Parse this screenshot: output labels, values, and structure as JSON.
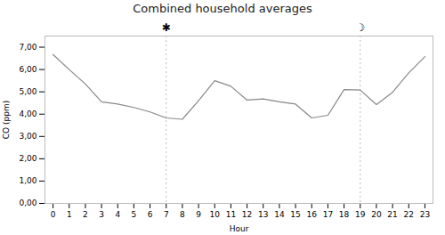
{
  "chart_data": {
    "type": "line",
    "title": "Combined household averages",
    "xlabel": "Hour",
    "ylabel": "CO (ppm)",
    "x": [
      0,
      1,
      2,
      3,
      4,
      5,
      6,
      7,
      8,
      9,
      10,
      11,
      12,
      13,
      14,
      15,
      16,
      17,
      18,
      19,
      20,
      21,
      22,
      23
    ],
    "values": [
      6.67,
      6.0,
      5.35,
      4.55,
      4.45,
      4.3,
      4.1,
      3.83,
      3.77,
      4.6,
      5.5,
      5.25,
      4.63,
      4.68,
      4.55,
      4.45,
      3.83,
      3.95,
      5.1,
      5.08,
      4.43,
      4.98,
      5.85,
      6.58
    ],
    "color": "#888888",
    "xlim": [
      -0.5,
      23.5
    ],
    "xticks": [
      0,
      1,
      2,
      3,
      4,
      5,
      6,
      7,
      8,
      9,
      10,
      11,
      12,
      13,
      14,
      15,
      16,
      17,
      18,
      19,
      20,
      21,
      22,
      23
    ],
    "ylim": [
      0.0,
      7.5
    ],
    "yticks": [
      {
        "value": 0.0,
        "label": "0,00"
      },
      {
        "value": 1.0,
        "label": "1,00"
      },
      {
        "value": 2.0,
        "label": "2,00"
      },
      {
        "value": 3.0,
        "label": "3,00"
      },
      {
        "value": 4.0,
        "label": "4,00"
      },
      {
        "value": 5.0,
        "label": "5,00"
      },
      {
        "value": 6.0,
        "label": "6,00"
      },
      {
        "value": 7.0,
        "label": "7,00"
      }
    ],
    "grid": false,
    "annotations": [
      {
        "x": 7,
        "text": "✱"
      },
      {
        "x": 19,
        "text": "☽"
      }
    ]
  }
}
